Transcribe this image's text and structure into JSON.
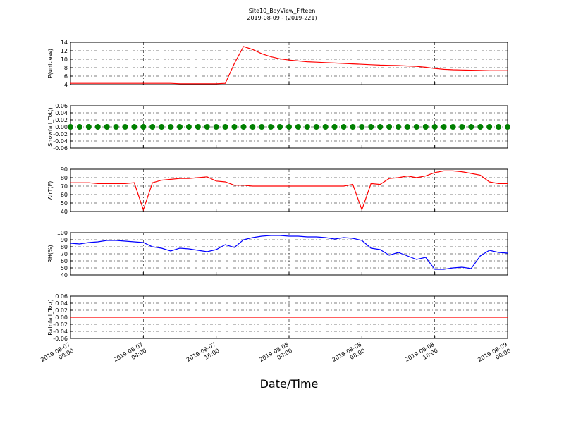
{
  "title": "Site10_BayView_Fifteen",
  "subtitle": "2019-08-09 - (2019-221)",
  "xlabel": "Date/Time",
  "x": [
    "2019-08-07 00:00",
    "2019-08-07 01:00",
    "2019-08-07 02:00",
    "2019-08-07 03:00",
    "2019-08-07 04:00",
    "2019-08-07 05:00",
    "2019-08-07 06:00",
    "2019-08-07 07:00",
    "2019-08-07 08:00",
    "2019-08-07 09:00",
    "2019-08-07 10:00",
    "2019-08-07 11:00",
    "2019-08-07 12:00",
    "2019-08-07 13:00",
    "2019-08-07 14:00",
    "2019-08-07 15:00",
    "2019-08-07 16:00",
    "2019-08-07 17:00",
    "2019-08-07 18:00",
    "2019-08-07 19:00",
    "2019-08-07 20:00",
    "2019-08-07 21:00",
    "2019-08-07 22:00",
    "2019-08-07 23:00",
    "2019-08-08 00:00",
    "2019-08-08 01:00",
    "2019-08-08 02:00",
    "2019-08-08 03:00",
    "2019-08-08 04:00",
    "2019-08-08 05:00",
    "2019-08-08 06:00",
    "2019-08-08 07:00",
    "2019-08-08 08:00",
    "2019-08-08 09:00",
    "2019-08-08 10:00",
    "2019-08-08 11:00",
    "2019-08-08 12:00",
    "2019-08-08 13:00",
    "2019-08-08 14:00",
    "2019-08-08 15:00",
    "2019-08-08 16:00",
    "2019-08-08 17:00",
    "2019-08-08 18:00",
    "2019-08-08 19:00",
    "2019-08-08 20:00",
    "2019-08-08 21:00",
    "2019-08-08 22:00",
    "2019-08-08 23:00",
    "2019-08-09 00:00"
  ],
  "xlim": [
    "2019-08-07 00:00",
    "2019-08-09 00:00"
  ],
  "xticks": [
    "2019-08-07 00:00",
    "2019-08-07 08:00",
    "2019-08-07 16:00",
    "2019-08-08 00:00",
    "2019-08-08 08:00",
    "2019-08-08 16:00",
    "2019-08-09 00:00"
  ],
  "grid": true,
  "chart_data": [
    {
      "type": "line",
      "ylabel": "P(unitless)",
      "color": "#ff0000",
      "ylim": [
        4,
        14
      ],
      "yticks": [
        4,
        6,
        8,
        10,
        12,
        14
      ],
      "values": [
        4.3,
        4.3,
        4.3,
        4.3,
        4.3,
        4.3,
        4.3,
        4.3,
        4.3,
        4.3,
        4.3,
        4.3,
        4.2,
        4.2,
        4.2,
        4.2,
        4.2,
        4.3,
        9.0,
        13.0,
        12.3,
        11.3,
        10.6,
        10.1,
        9.8,
        9.6,
        9.4,
        9.3,
        9.2,
        9.1,
        9.0,
        8.9,
        8.8,
        8.7,
        8.6,
        8.55,
        8.5,
        8.4,
        8.3,
        8.1,
        7.8,
        7.6,
        7.5,
        7.45,
        7.4,
        7.35,
        7.3,
        7.3,
        7.3
      ]
    },
    {
      "type": "scatter",
      "ylabel": "Snowfall_Tot()",
      "color": "#008000",
      "ylim": [
        -0.06,
        0.06
      ],
      "yticks": [
        -0.06,
        -0.04,
        -0.02,
        {
          "value": 0,
          "label": "0.00"
        },
        0.02,
        0.04,
        0.06
      ],
      "values": [
        0,
        0,
        0,
        0,
        0,
        0,
        0,
        0,
        0,
        0,
        0,
        0,
        0,
        0,
        0,
        0,
        0,
        0,
        0,
        0,
        0,
        0,
        0,
        0,
        0,
        0,
        0,
        0,
        0,
        0,
        0,
        0,
        0,
        0,
        0,
        0,
        0,
        0,
        0,
        0,
        0,
        0,
        0,
        0,
        0,
        0,
        0,
        0,
        0
      ]
    },
    {
      "type": "line",
      "ylabel": "AirT(F)",
      "color": "#ff0000",
      "ylim": [
        40,
        90
      ],
      "yticks": [
        40,
        50,
        60,
        70,
        80,
        90
      ],
      "values": [
        74,
        74,
        74,
        73,
        73,
        73,
        73,
        74,
        42,
        74,
        77,
        78,
        79,
        79,
        80,
        81,
        76,
        75,
        71,
        71,
        70,
        70,
        70,
        70,
        70,
        70,
        70,
        70,
        70,
        70,
        70,
        72,
        42,
        73,
        72,
        79,
        80,
        82,
        80,
        82,
        86,
        88,
        88,
        87,
        85,
        83,
        75,
        73,
        73
      ]
    },
    {
      "type": "line",
      "ylabel": "RH(%)",
      "color": "#0000ff",
      "ylim": [
        40,
        100
      ],
      "yticks": [
        40,
        50,
        60,
        70,
        80,
        90,
        100
      ],
      "values": [
        85,
        84,
        86,
        87,
        89,
        89,
        88,
        87,
        86,
        80,
        78,
        74,
        78,
        77,
        75,
        73,
        76,
        83,
        79,
        90,
        93,
        95,
        96,
        96,
        95,
        95,
        94,
        94,
        93,
        91,
        93,
        92,
        89,
        78,
        76,
        68,
        72,
        67,
        62,
        65,
        48,
        48,
        50,
        51,
        49,
        67,
        75,
        72,
        71
      ]
    },
    {
      "type": "line",
      "ylabel": "Rainfall_Tot()",
      "color": "#ff0000",
      "ylim": [
        -0.06,
        0.06
      ],
      "yticks": [
        -0.06,
        -0.04,
        -0.02,
        {
          "value": 0,
          "label": "0.00"
        },
        0.02,
        0.04,
        0.06
      ],
      "values": [
        0,
        0,
        0,
        0,
        0,
        0,
        0,
        0,
        0,
        0,
        0,
        0,
        0,
        0,
        0,
        0,
        0,
        0,
        0,
        0,
        0,
        0,
        0,
        0,
        0,
        0,
        0,
        0,
        0,
        0,
        0,
        0,
        0,
        0,
        0,
        0,
        0,
        0,
        0,
        0,
        0,
        0,
        0,
        0,
        0,
        0,
        0,
        0,
        0
      ]
    }
  ]
}
